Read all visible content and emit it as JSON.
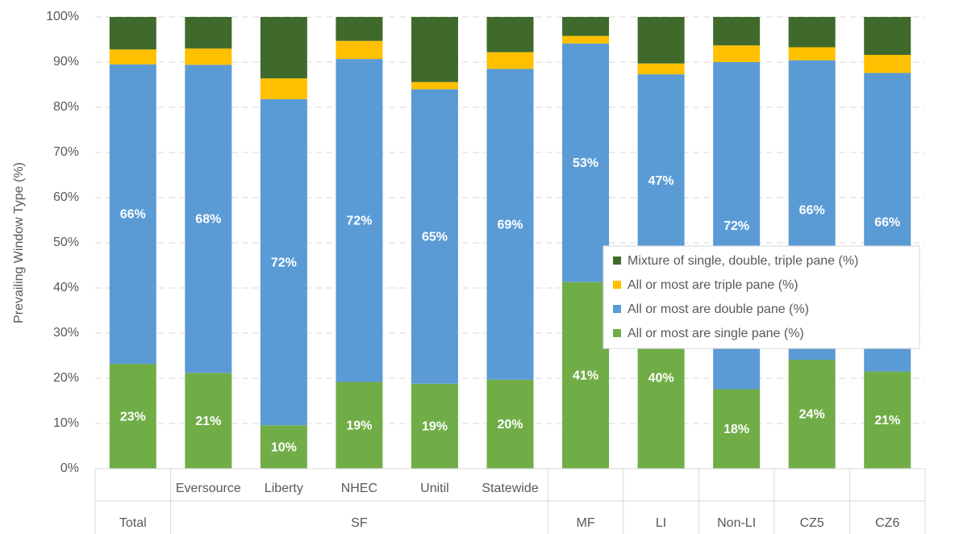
{
  "chart_data": {
    "type": "stacked_bar",
    "ylabel": "Prevailing Window Type (%)",
    "groups": [
      {
        "name": "Total",
        "categories": [
          null
        ]
      },
      {
        "name": "SF",
        "categories": [
          "Eversource",
          "Liberty",
          "NHEC",
          "Unitil",
          "Statewide"
        ]
      },
      {
        "name": "MF",
        "categories": [
          null
        ]
      },
      {
        "name": "LI",
        "categories": [
          null
        ]
      },
      {
        "name": "Non-LI",
        "categories": [
          null
        ]
      },
      {
        "name": "CZ5",
        "categories": [
          null
        ]
      },
      {
        "name": "CZ6",
        "categories": [
          null
        ]
      }
    ],
    "series": [
      {
        "name": "All or most are single pane (%)",
        "color": "#70ad47",
        "values": [
          23.2,
          21.2,
          9.6,
          19.2,
          18.8,
          19.7,
          41.3,
          40.2,
          17.6,
          24.1,
          21.5
        ],
        "value_labels": [
          "23%",
          "21%",
          "10%",
          "19%",
          "19%",
          "20%",
          "41%",
          "40%",
          "18%",
          "24%",
          "21%"
        ]
      },
      {
        "name": "All or most are double pane (%)",
        "color": "#5b9bd5",
        "values": [
          66.3,
          68.2,
          72.2,
          71.5,
          65.2,
          68.8,
          52.8,
          47.1,
          72.4,
          66.3,
          66.1
        ],
        "value_labels": [
          "66%",
          "68%",
          "72%",
          "72%",
          "65%",
          "69%",
          "53%",
          "47%",
          "72%",
          "66%",
          "66%"
        ]
      },
      {
        "name": "All or most are triple pane (%)",
        "color": "#ffc000",
        "values": [
          3.3,
          3.6,
          4.6,
          4.0,
          1.6,
          3.7,
          1.7,
          2.4,
          3.7,
          2.9,
          4.0
        ]
      },
      {
        "name": "Mixture of single, double, triple pane (%)",
        "color": "#3f6a2b",
        "values": [
          7.2,
          7.0,
          13.6,
          5.3,
          14.4,
          7.8,
          4.2,
          10.3,
          6.3,
          6.7,
          8.4
        ]
      }
    ],
    "ylim": [
      0,
      100
    ],
    "yticks": [
      {
        "value": 0,
        "label": "0%"
      },
      {
        "value": 10,
        "label": "10%"
      },
      {
        "value": 20,
        "label": "20%"
      },
      {
        "value": 30,
        "label": "30%"
      },
      {
        "value": 40,
        "label": "40%"
      },
      {
        "value": 50,
        "label": "50%"
      },
      {
        "value": 60,
        "label": "60%"
      },
      {
        "value": 70,
        "label": "70%"
      },
      {
        "value": 80,
        "label": "80%"
      },
      {
        "value": 90,
        "label": "90%"
      },
      {
        "value": 100,
        "label": "100%"
      }
    ],
    "grid": true,
    "legend_position": "right"
  }
}
